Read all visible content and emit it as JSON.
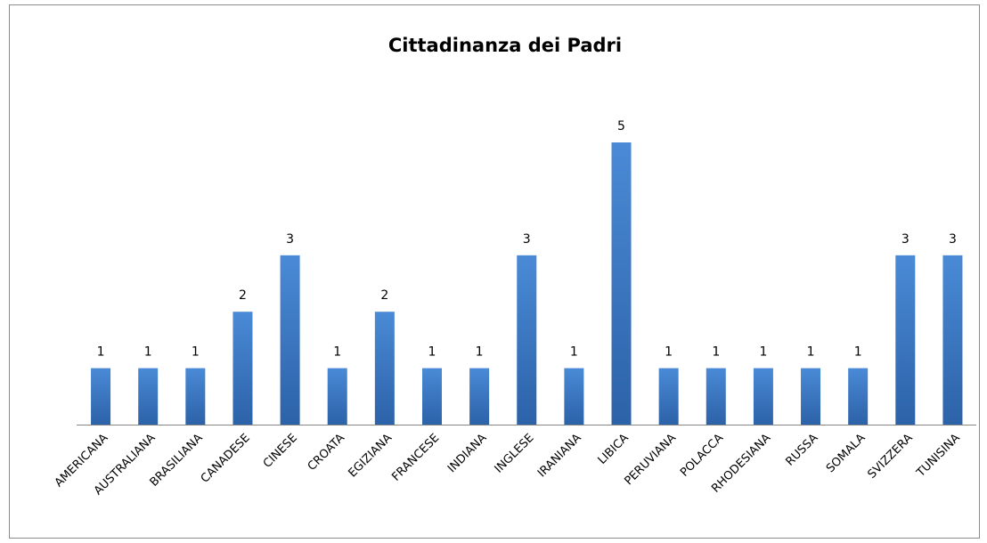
{
  "chart_data": {
    "type": "bar",
    "title": "Cittadinanza dei Padri",
    "categories": [
      "AMERICANA",
      "AUSTRALIANA",
      "BRASILIANA",
      "CANADESE",
      "CINESE",
      "CROATA",
      "EGIZIANA",
      "FRANCESE",
      "INDIANA",
      "INGLESE",
      "IRANIANA",
      "LIBICA",
      "PERUVIANA",
      "POLACCA",
      "RHODESIANA",
      "RUSSA",
      "SOMALA",
      "SVIZZERA",
      "TUNISINA"
    ],
    "values": [
      1,
      1,
      1,
      2,
      3,
      1,
      2,
      1,
      1,
      3,
      1,
      5,
      1,
      1,
      1,
      1,
      1,
      3,
      3
    ],
    "color": "#3a78c4"
  }
}
